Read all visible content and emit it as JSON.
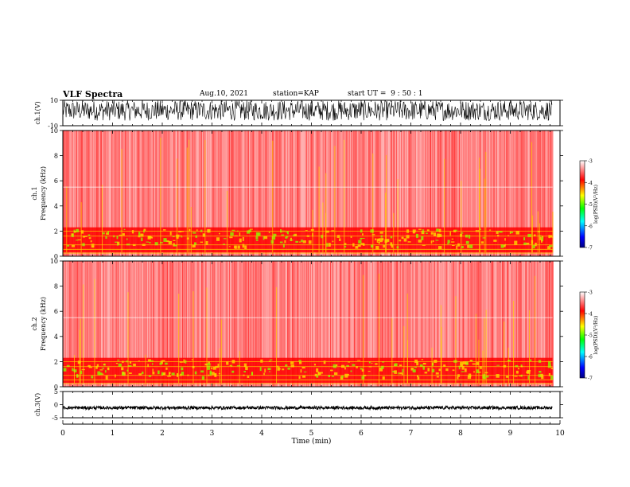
{
  "header": {
    "title": "VLF Spectra",
    "date": "Aug.10, 2021",
    "station": "station=KAP",
    "start": "start UT =  9 : 50 : 1"
  },
  "colors": {
    "spectrogram_background": "#ffffff",
    "noise_low": "#ff2a2a",
    "noise_mid": "#ff0000",
    "band_high": "#ffd000",
    "band_peak": "#90ee00",
    "line": "#000000"
  },
  "chart_data": [
    {
      "type": "line",
      "name": "ch1-waveform",
      "ylabel": "ch.1(V)",
      "ylim": [
        -10,
        10
      ],
      "yticks": [
        "10",
        "-10"
      ],
      "xlim": [
        0,
        10
      ],
      "amplitude_note_range": [
        -6,
        10
      ]
    },
    {
      "type": "heatmap",
      "name": "ch1-spectrogram",
      "ylabel": "Frequency (kHz)",
      "channel_label": "ch.1",
      "ylim": [
        0,
        10
      ],
      "yticks": [
        "0",
        "2",
        "4",
        "6",
        "8",
        "10"
      ],
      "xlim": [
        0,
        9.85
      ],
      "colorbar": {
        "label": "log(PSD)(V²/Hz)",
        "range": [
          -7,
          -3
        ],
        "ticks": [
          "-3",
          "-4",
          "-5",
          "-6",
          "-7"
        ],
        "colors": [
          "#000080",
          "#0000ff",
          "#00ffff",
          "#00ff00",
          "#ffff00",
          "#ff0000",
          "#ffffff"
        ]
      }
    },
    {
      "type": "heatmap",
      "name": "ch2-spectrogram",
      "ylabel": "Frequency (kHz)",
      "channel_label": "ch.2",
      "ylim": [
        0,
        10
      ],
      "yticks": [
        "0",
        "2",
        "4",
        "6",
        "8",
        "10"
      ],
      "xlim": [
        0,
        9.85
      ],
      "colorbar": {
        "label": "log(PSD)(V²/Hz)",
        "range": [
          -7,
          -3
        ],
        "ticks": [
          "-3",
          "-4",
          "-5",
          "-6",
          "-7"
        ],
        "colors": [
          "#000080",
          "#0000ff",
          "#00ffff",
          "#00ff00",
          "#ffff00",
          "#ff0000",
          "#ffffff"
        ]
      }
    },
    {
      "type": "line",
      "name": "ch3-waveform",
      "ylabel": "ch.3(V)",
      "ylim": [
        -5,
        5
      ],
      "yticks": [
        "5",
        "0",
        "-5"
      ],
      "xlim": [
        0,
        10
      ],
      "level": -1.2,
      "spread": 0.6
    }
  ],
  "x_axis": {
    "label": "Time (min)",
    "range": [
      0,
      10
    ],
    "ticks": [
      "0",
      "1",
      "2",
      "3",
      "4",
      "5",
      "6",
      "7",
      "8",
      "9",
      "10"
    ]
  }
}
